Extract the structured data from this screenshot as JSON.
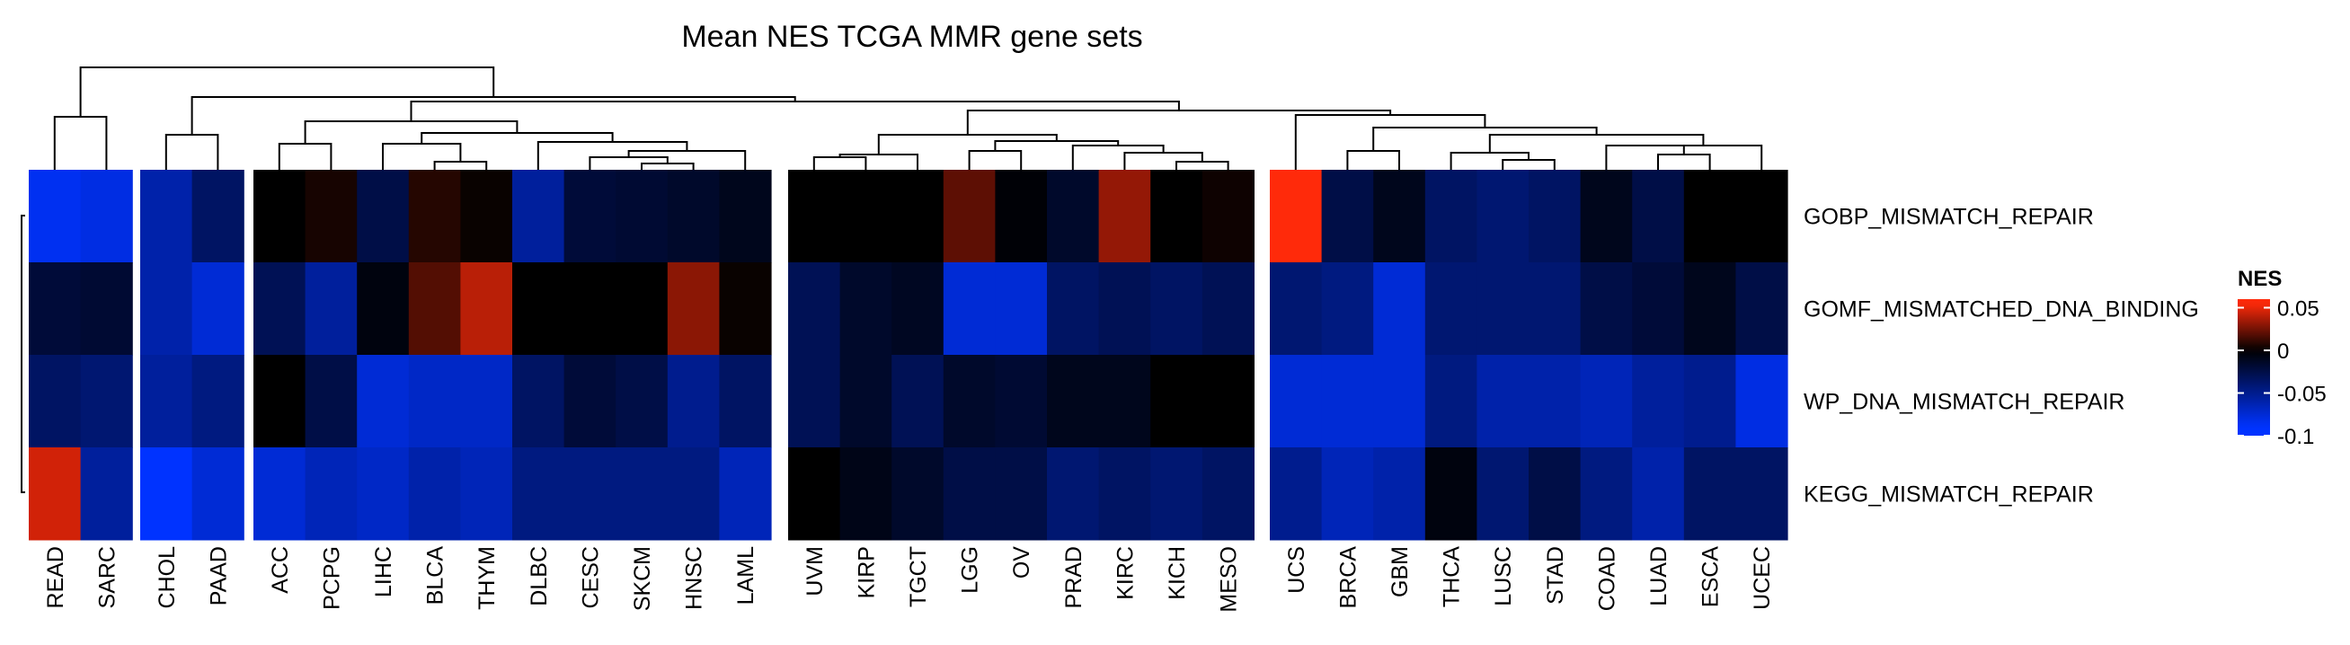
{
  "chart_data": {
    "type": "heatmap",
    "title": "Mean NES TCGA MMR gene sets",
    "rows": [
      "GOBP_MISMATCH_REPAIR",
      "GOMF_MISMATCHED_DNA_BINDING",
      "WP_DNA_MISMATCH_REPAIR",
      "KEGG_MISMATCH_REPAIR"
    ],
    "column_groups": [
      [
        "READ",
        "SARC"
      ],
      [
        "CHOL",
        "PAAD"
      ],
      [
        "ACC",
        "PCPG",
        "LIHC",
        "BLCA",
        "THYM",
        "DLBC",
        "CESC",
        "SKCM",
        "HNSC",
        "LAML"
      ],
      [
        "UVM",
        "KIRP",
        "TGCT",
        "LGG",
        "OV",
        "PRAD",
        "KIRC",
        "KICH",
        "MESO"
      ],
      [
        "UCS",
        "BRCA",
        "GBM",
        "THCA",
        "LUSC",
        "STAD",
        "COAD",
        "LUAD",
        "ESCA",
        "UCEC"
      ]
    ],
    "columns": [
      "READ",
      "SARC",
      "CHOL",
      "PAAD",
      "ACC",
      "PCPG",
      "LIHC",
      "BLCA",
      "THYM",
      "DLBC",
      "CESC",
      "SKCM",
      "HNSC",
      "LAML",
      "UVM",
      "KIRP",
      "TGCT",
      "LGG",
      "OV",
      "PRAD",
      "KIRC",
      "KICH",
      "MESO",
      "UCS",
      "BRCA",
      "GBM",
      "THCA",
      "LUSC",
      "STAD",
      "COAD",
      "LUAD",
      "ESCA",
      "UCEC"
    ],
    "values": [
      [
        -0.085,
        -0.08,
        -0.06,
        -0.035,
        0.0,
        0.005,
        -0.025,
        0.008,
        0.002,
        -0.055,
        -0.02,
        -0.018,
        -0.015,
        -0.01,
        0.0,
        0.0,
        0.0,
        0.02,
        -0.002,
        -0.015,
        0.032,
        0.0,
        0.003,
        0.055,
        -0.025,
        -0.01,
        -0.035,
        -0.04,
        -0.035,
        -0.01,
        -0.025,
        0.0,
        0.0
      ],
      [
        -0.02,
        -0.018,
        -0.06,
        -0.075,
        -0.03,
        -0.055,
        -0.005,
        0.018,
        0.04,
        0.0,
        0.0,
        0.0,
        0.03,
        0.002,
        -0.03,
        -0.015,
        -0.012,
        -0.075,
        -0.075,
        -0.035,
        -0.03,
        -0.035,
        -0.03,
        -0.04,
        -0.045,
        -0.075,
        -0.04,
        -0.04,
        -0.04,
        -0.025,
        -0.02,
        -0.01,
        -0.025
      ],
      [
        -0.035,
        -0.04,
        -0.055,
        -0.045,
        0.0,
        -0.025,
        -0.075,
        -0.07,
        -0.07,
        -0.035,
        -0.02,
        -0.025,
        -0.05,
        -0.035,
        -0.03,
        -0.015,
        -0.03,
        -0.015,
        -0.018,
        -0.01,
        -0.01,
        0.0,
        0.0,
        -0.075,
        -0.075,
        -0.075,
        -0.045,
        -0.06,
        -0.06,
        -0.065,
        -0.055,
        -0.05,
        -0.08
      ],
      [
        0.045,
        -0.055,
        -0.09,
        -0.075,
        -0.075,
        -0.065,
        -0.07,
        -0.06,
        -0.065,
        -0.045,
        -0.045,
        -0.045,
        -0.045,
        -0.065,
        0.0,
        -0.008,
        -0.015,
        -0.025,
        -0.025,
        -0.04,
        -0.035,
        -0.04,
        -0.035,
        -0.05,
        -0.065,
        -0.06,
        -0.005,
        -0.04,
        -0.025,
        -0.045,
        -0.06,
        -0.035,
        -0.035
      ]
    ],
    "legend": {
      "title": "NES",
      "ticks": [
        0.05,
        0,
        -0.05,
        -0.1
      ],
      "tick_labels": [
        "0.05",
        "0",
        "-0.05",
        "-0.1"
      ],
      "colors": {
        "high": "#ff2a0a",
        "mid": "#000000",
        "low": "#0033ff"
      },
      "range": [
        -0.1,
        0.06
      ],
      "placement": "right"
    },
    "column_dendrogram": true,
    "row_dendrogram": true
  }
}
